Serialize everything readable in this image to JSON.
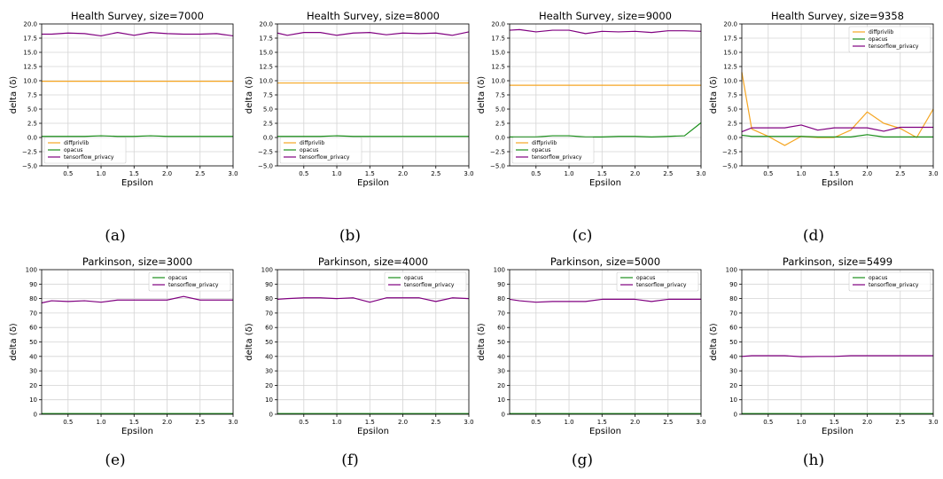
{
  "figure": {
    "panel_letters": [
      "(a)",
      "(b)",
      "(c)",
      "(d)",
      "(e)",
      "(f)",
      "(g)",
      "(h)"
    ]
  },
  "colors": {
    "diffprivlib": "#f5a623",
    "opacus": "#1a8f1a",
    "tensorflow_privacy": "#800080",
    "grid": "#d4d4d4"
  },
  "chart_data": [
    {
      "type": "line",
      "title": "Health Survey, size=7000",
      "xlabel": "Epsilon",
      "ylabel": "delta (δ)",
      "xlim": [
        0.1,
        3.0
      ],
      "ylim": [
        -5,
        20
      ],
      "xticks": [
        0.5,
        1.0,
        1.5,
        2.0,
        2.5,
        3.0
      ],
      "xtick_labels": [
        "0.5",
        "1.0",
        "1.5",
        "2.0",
        "2.5",
        "3.0"
      ],
      "yticks": [
        -5,
        -2.5,
        0,
        2.5,
        5,
        7.5,
        10,
        12.5,
        15,
        17.5,
        20
      ],
      "ytick_labels": [
        "−5.0",
        "−2.5",
        "0.0",
        "2.5",
        "5.0",
        "7.5",
        "10.0",
        "12.5",
        "15.0",
        "17.5",
        "20.0"
      ],
      "grid": true,
      "legend_position": "bottom-left",
      "x": [
        0.1,
        0.25,
        0.5,
        0.75,
        1.0,
        1.25,
        1.5,
        1.75,
        2.0,
        2.25,
        2.5,
        2.75,
        3.0
      ],
      "series": [
        {
          "name": "diffprivlib",
          "color_key": "diffprivlib",
          "values": [
            9.9,
            9.9,
            9.9,
            9.9,
            9.9,
            9.9,
            9.9,
            9.9,
            9.9,
            9.9,
            9.9,
            9.9,
            9.9
          ]
        },
        {
          "name": "opacus",
          "color_key": "opacus",
          "values": [
            0.2,
            0.2,
            0.2,
            0.2,
            0.3,
            0.2,
            0.2,
            0.3,
            0.2,
            0.2,
            0.2,
            0.2,
            0.2
          ]
        },
        {
          "name": "tensorflow_privacy",
          "color_key": "tensorflow_privacy",
          "values": [
            18.2,
            18.2,
            18.4,
            18.3,
            17.9,
            18.5,
            18.0,
            18.5,
            18.3,
            18.2,
            18.2,
            18.3,
            17.9
          ]
        }
      ]
    },
    {
      "type": "line",
      "title": "Health Survey, size=8000",
      "xlabel": "Epsilon",
      "ylabel": "delta (δ)",
      "xlim": [
        0.1,
        3.0
      ],
      "ylim": [
        -5,
        20
      ],
      "xticks": [
        0.5,
        1.0,
        1.5,
        2.0,
        2.5,
        3.0
      ],
      "xtick_labels": [
        "0.5",
        "1.0",
        "1.5",
        "2.0",
        "2.5",
        "3.0"
      ],
      "yticks": [
        -5,
        -2.5,
        0,
        2.5,
        5,
        7.5,
        10,
        12.5,
        15,
        17.5,
        20
      ],
      "ytick_labels": [
        "−5.0",
        "−2.5",
        "0.0",
        "2.5",
        "5.0",
        "7.5",
        "10.0",
        "12.5",
        "15.0",
        "17.5",
        "20.0"
      ],
      "grid": true,
      "legend_position": "bottom-left",
      "x": [
        0.1,
        0.25,
        0.5,
        0.75,
        1.0,
        1.25,
        1.5,
        1.75,
        2.0,
        2.25,
        2.5,
        2.75,
        3.0
      ],
      "series": [
        {
          "name": "diffprivlib",
          "color_key": "diffprivlib",
          "values": [
            9.6,
            9.6,
            9.6,
            9.6,
            9.6,
            9.6,
            9.6,
            9.6,
            9.6,
            9.6,
            9.6,
            9.6,
            9.6
          ]
        },
        {
          "name": "opacus",
          "color_key": "opacus",
          "values": [
            0.2,
            0.2,
            0.2,
            0.2,
            0.3,
            0.2,
            0.2,
            0.2,
            0.2,
            0.2,
            0.2,
            0.2,
            0.2
          ]
        },
        {
          "name": "tensorflow_privacy",
          "color_key": "tensorflow_privacy",
          "values": [
            18.4,
            18.0,
            18.5,
            18.5,
            18.0,
            18.4,
            18.5,
            18.1,
            18.4,
            18.3,
            18.4,
            18.0,
            18.6
          ]
        }
      ]
    },
    {
      "type": "line",
      "title": "Health Survey, size=9000",
      "xlabel": "Epsilon",
      "ylabel": "delta (δ)",
      "xlim": [
        0.1,
        3.0
      ],
      "ylim": [
        -5,
        20
      ],
      "xticks": [
        0.5,
        1.0,
        1.5,
        2.0,
        2.5,
        3.0
      ],
      "xtick_labels": [
        "0.5",
        "1.0",
        "1.5",
        "2.0",
        "2.5",
        "3.0"
      ],
      "yticks": [
        -5,
        -2.5,
        0,
        2.5,
        5,
        7.5,
        10,
        12.5,
        15,
        17.5,
        20
      ],
      "ytick_labels": [
        "−5.0",
        "−2.5",
        "0.0",
        "2.5",
        "5.0",
        "7.5",
        "10.0",
        "12.5",
        "15.0",
        "17.5",
        "20.0"
      ],
      "grid": true,
      "legend_position": "bottom-left",
      "x": [
        0.1,
        0.25,
        0.5,
        0.75,
        1.0,
        1.25,
        1.5,
        1.75,
        2.0,
        2.25,
        2.5,
        2.75,
        3.0
      ],
      "series": [
        {
          "name": "diffprivlib",
          "color_key": "diffprivlib",
          "values": [
            9.2,
            9.2,
            9.2,
            9.2,
            9.2,
            9.2,
            9.2,
            9.2,
            9.2,
            9.2,
            9.2,
            9.2,
            9.2
          ]
        },
        {
          "name": "opacus",
          "color_key": "opacus",
          "values": [
            0.1,
            0.1,
            0.1,
            0.3,
            0.3,
            0.1,
            0.1,
            0.2,
            0.2,
            0.1,
            0.2,
            0.3,
            2.6
          ]
        },
        {
          "name": "tensorflow_privacy",
          "color_key": "tensorflow_privacy",
          "values": [
            18.9,
            19.0,
            18.6,
            18.9,
            18.9,
            18.3,
            18.7,
            18.6,
            18.7,
            18.5,
            18.8,
            18.8,
            18.7
          ]
        }
      ]
    },
    {
      "type": "line",
      "title": "Health Survey, size=9358",
      "xlabel": "Epsilon",
      "ylabel": "delta (δ)",
      "xlim": [
        0.1,
        3.0
      ],
      "ylim": [
        -5,
        20
      ],
      "xticks": [
        0.5,
        1.0,
        1.5,
        2.0,
        2.5,
        3.0
      ],
      "xtick_labels": [
        "0.5",
        "1.0",
        "1.5",
        "2.0",
        "2.5",
        "3.0"
      ],
      "yticks": [
        -5,
        -2.5,
        0,
        2.5,
        5,
        7.5,
        10,
        12.5,
        15,
        17.5,
        20
      ],
      "ytick_labels": [
        "−5.0",
        "−2.5",
        "0.0",
        "2.5",
        "5.0",
        "7.5",
        "10.0",
        "12.5",
        "15.0",
        "17.5",
        "20.0"
      ],
      "grid": true,
      "legend_position": "top-right",
      "x": [
        0.1,
        0.25,
        0.5,
        0.75,
        1.0,
        1.25,
        1.5,
        1.75,
        2.0,
        2.25,
        2.5,
        2.75,
        3.0
      ],
      "series": [
        {
          "name": "diffprivlib",
          "color_key": "diffprivlib",
          "values": [
            11.5,
            1.5,
            0.2,
            -1.4,
            0.2,
            0.0,
            0.0,
            1.3,
            4.5,
            2.5,
            1.6,
            0.0,
            5.0
          ]
        },
        {
          "name": "opacus",
          "color_key": "opacus",
          "values": [
            0.4,
            0.2,
            0.2,
            0.2,
            0.2,
            0.1,
            0.1,
            0.1,
            0.5,
            0.1,
            0.1,
            0.1,
            0.1
          ]
        },
        {
          "name": "tensorflow_privacy",
          "color_key": "tensorflow_privacy",
          "values": [
            1.0,
            1.7,
            1.7,
            1.7,
            2.2,
            1.3,
            1.7,
            1.7,
            1.7,
            1.1,
            1.8,
            1.8,
            1.8
          ]
        }
      ]
    },
    {
      "type": "line",
      "title": "Parkinson, size=3000",
      "xlabel": "Epsilon",
      "ylabel": "delta (δ)",
      "xlim": [
        0.1,
        3.0
      ],
      "ylim": [
        0,
        100
      ],
      "xticks": [
        0.5,
        1.0,
        1.5,
        2.0,
        2.5,
        3.0
      ],
      "xtick_labels": [
        "0.5",
        "1.0",
        "1.5",
        "2.0",
        "2.5",
        "3.0"
      ],
      "yticks": [
        0,
        10,
        20,
        30,
        40,
        50,
        60,
        70,
        80,
        90,
        100
      ],
      "ytick_labels": [
        "0",
        "10",
        "20",
        "30",
        "40",
        "50",
        "60",
        "70",
        "80",
        "90",
        "100"
      ],
      "grid": true,
      "legend_position": "top-right",
      "x": [
        0.1,
        0.25,
        0.5,
        0.75,
        1.0,
        1.25,
        1.5,
        1.75,
        2.0,
        2.25,
        2.5,
        2.75,
        3.0
      ],
      "series": [
        {
          "name": "opacus",
          "color_key": "opacus",
          "values": [
            0.5,
            0.5,
            0.5,
            0.5,
            0.5,
            0.5,
            0.5,
            0.5,
            0.5,
            0.5,
            0.5,
            0.5,
            0.5
          ]
        },
        {
          "name": "tensorflow_privacy",
          "color_key": "tensorflow_privacy",
          "values": [
            77,
            78.5,
            78,
            78.5,
            77.5,
            79,
            79,
            79,
            79,
            81.5,
            79,
            79,
            79
          ]
        }
      ]
    },
    {
      "type": "line",
      "title": "Parkinson, size=4000",
      "xlabel": "Epsilon",
      "ylabel": "delta (δ)",
      "xlim": [
        0.1,
        3.0
      ],
      "ylim": [
        0,
        100
      ],
      "xticks": [
        0.5,
        1.0,
        1.5,
        2.0,
        2.5,
        3.0
      ],
      "xtick_labels": [
        "0.5",
        "1.0",
        "1.5",
        "2.0",
        "2.5",
        "3.0"
      ],
      "yticks": [
        0,
        10,
        20,
        30,
        40,
        50,
        60,
        70,
        80,
        90,
        100
      ],
      "ytick_labels": [
        "0",
        "10",
        "20",
        "30",
        "40",
        "50",
        "60",
        "70",
        "80",
        "90",
        "100"
      ],
      "grid": true,
      "legend_position": "top-right",
      "x": [
        0.1,
        0.25,
        0.5,
        0.75,
        1.0,
        1.25,
        1.5,
        1.75,
        2.0,
        2.25,
        2.5,
        2.75,
        3.0
      ],
      "series": [
        {
          "name": "opacus",
          "color_key": "opacus",
          "values": [
            0.5,
            0.5,
            0.5,
            0.5,
            0.5,
            0.5,
            0.5,
            0.5,
            0.5,
            0.5,
            0.5,
            0.5,
            0.5
          ]
        },
        {
          "name": "tensorflow_privacy",
          "color_key": "tensorflow_privacy",
          "values": [
            79.5,
            80,
            80.5,
            80.5,
            80,
            80.5,
            77.5,
            80.5,
            80.5,
            80.5,
            78,
            80.5,
            80
          ]
        }
      ]
    },
    {
      "type": "line",
      "title": "Parkinson, size=5000",
      "xlabel": "Epsilon",
      "ylabel": "delta (δ)",
      "xlim": [
        0.1,
        3.0
      ],
      "ylim": [
        0,
        100
      ],
      "xticks": [
        0.5,
        1.0,
        1.5,
        2.0,
        2.5,
        3.0
      ],
      "xtick_labels": [
        "0.5",
        "1.0",
        "1.5",
        "2.0",
        "2.5",
        "3.0"
      ],
      "yticks": [
        0,
        10,
        20,
        30,
        40,
        50,
        60,
        70,
        80,
        90,
        100
      ],
      "ytick_labels": [
        "0",
        "10",
        "20",
        "30",
        "40",
        "50",
        "60",
        "70",
        "80",
        "90",
        "100"
      ],
      "grid": true,
      "legend_position": "top-right",
      "x": [
        0.1,
        0.25,
        0.5,
        0.75,
        1.0,
        1.25,
        1.5,
        1.75,
        2.0,
        2.25,
        2.5,
        2.75,
        3.0
      ],
      "series": [
        {
          "name": "opacus",
          "color_key": "opacus",
          "values": [
            0.5,
            0.5,
            0.5,
            0.5,
            0.5,
            0.5,
            0.5,
            0.5,
            0.5,
            0.5,
            0.5,
            0.5,
            0.5
          ]
        },
        {
          "name": "tensorflow_privacy",
          "color_key": "tensorflow_privacy",
          "values": [
            79.5,
            78.5,
            77.5,
            78,
            78,
            78,
            79.5,
            79.5,
            79.5,
            78,
            79.5,
            79.5,
            79.5
          ]
        }
      ]
    },
    {
      "type": "line",
      "title": "Parkinson, size=5499",
      "xlabel": "Epsilon",
      "ylabel": "delta (δ)",
      "xlim": [
        0.1,
        3.0
      ],
      "ylim": [
        0,
        100
      ],
      "xticks": [
        0.5,
        1.0,
        1.5,
        2.0,
        2.5,
        3.0
      ],
      "xtick_labels": [
        "0.5",
        "1.0",
        "1.5",
        "2.0",
        "2.5",
        "3.0"
      ],
      "yticks": [
        0,
        10,
        20,
        30,
        40,
        50,
        60,
        70,
        80,
        90,
        100
      ],
      "ytick_labels": [
        "0",
        "10",
        "20",
        "30",
        "40",
        "50",
        "60",
        "70",
        "80",
        "90",
        "100"
      ],
      "grid": true,
      "legend_position": "top-right",
      "x": [
        0.1,
        0.25,
        0.5,
        0.75,
        1.0,
        1.25,
        1.5,
        1.75,
        2.0,
        2.25,
        2.5,
        2.75,
        3.0
      ],
      "series": [
        {
          "name": "opacus",
          "color_key": "opacus",
          "values": [
            0.5,
            0.5,
            0.5,
            0.5,
            0.5,
            0.5,
            0.5,
            0.5,
            0.5,
            0.5,
            0.5,
            0.5,
            0.5
          ]
        },
        {
          "name": "tensorflow_privacy",
          "color_key": "tensorflow_privacy",
          "values": [
            40,
            40.5,
            40.5,
            40.5,
            39.8,
            40,
            40,
            40.5,
            40.5,
            40.5,
            40.5,
            40.5,
            40.5
          ]
        }
      ]
    }
  ]
}
